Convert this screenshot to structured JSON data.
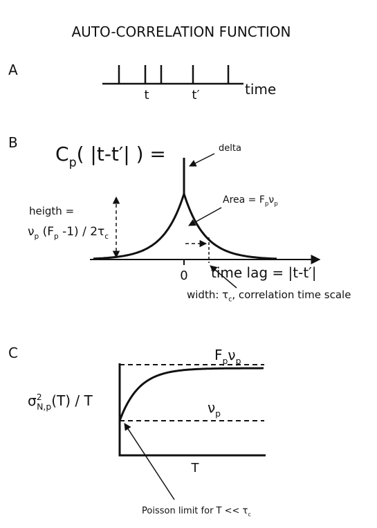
{
  "title": "AUTO-CORRELATION FUNCTION",
  "panel_a": {
    "label": "A",
    "tick_labels": [
      "t",
      "t′"
    ],
    "axis_label": "time"
  },
  "panel_b": {
    "label": "B",
    "formula": [
      {
        "text": "C"
      },
      {
        "text": "p",
        "shift": "sub"
      },
      {
        "text": "( |t-t′| ) ="
      }
    ],
    "delta": "delta",
    "area": [
      {
        "text": "Area = F"
      },
      {
        "text": "p",
        "shift": "sub"
      },
      {
        "text": "ν"
      },
      {
        "text": "p",
        "shift": "sub"
      }
    ],
    "height_label": "heigth =",
    "height_formula": [
      {
        "text": "ν"
      },
      {
        "text": "p",
        "shift": "sub"
      },
      {
        "text": " (F"
      },
      {
        "text": "p",
        "shift": "sub"
      },
      {
        "text": " -1) / 2τ"
      },
      {
        "text": "c",
        "shift": "sub"
      }
    ],
    "zero": "0",
    "axis_label": "time lag = |t-t′|",
    "width_label": [
      {
        "text": "width: τ"
      },
      {
        "text": "c",
        "shift": "sub"
      },
      {
        "text": ", correlation time scale"
      }
    ]
  },
  "panel_c": {
    "label": "C",
    "top_label": [
      {
        "text": "F"
      },
      {
        "text": "p",
        "shift": "sub"
      },
      {
        "text": "ν"
      },
      {
        "text": "p",
        "shift": "sub"
      }
    ],
    "y_label": [
      {
        "text": "σ"
      },
      {
        "text": "2",
        "shift": "sup"
      },
      {
        "text": "N,p",
        "shift": "sub"
      },
      {
        "text": "(T) / T"
      }
    ],
    "mid_label": [
      {
        "text": "ν"
      },
      {
        "text": "p",
        "shift": "sub"
      }
    ],
    "axis_label": "T",
    "poisson": [
      {
        "text": "Poisson limit for  T << τ"
      },
      {
        "text": "c",
        "shift": "sub"
      }
    ]
  }
}
